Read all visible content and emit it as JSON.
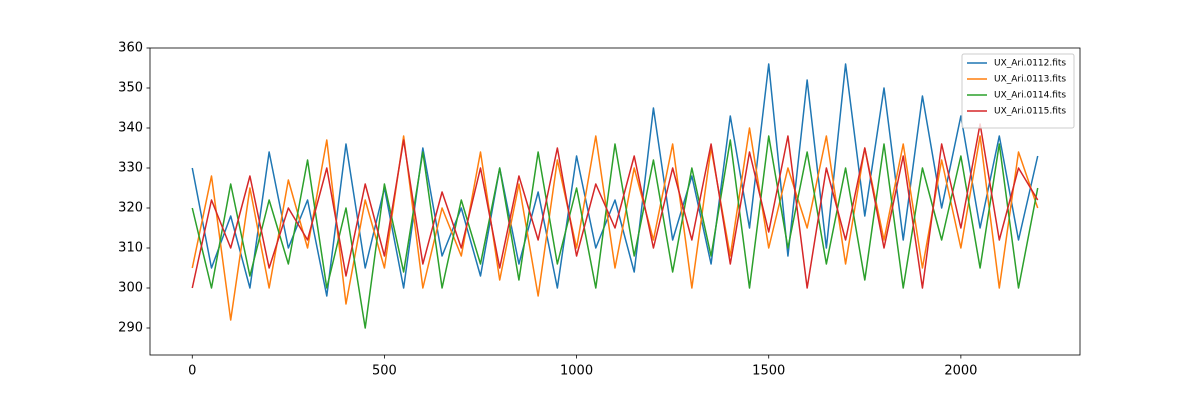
{
  "chart_data": {
    "type": "line",
    "x": [
      0,
      50,
      100,
      150,
      200,
      250,
      300,
      350,
      400,
      450,
      500,
      550,
      600,
      650,
      700,
      750,
      800,
      850,
      900,
      950,
      1000,
      1050,
      1100,
      1150,
      1200,
      1250,
      1300,
      1350,
      1400,
      1450,
      1500,
      1550,
      1600,
      1650,
      1700,
      1750,
      1800,
      1850,
      1900,
      1950,
      2000,
      2050,
      2100,
      2150,
      2200
    ],
    "series": [
      {
        "name": "UX_Ari.0112.fits",
        "color": "#1f77b4",
        "values": [
          330,
          305,
          318,
          300,
          334,
          310,
          322,
          298,
          336,
          305,
          325,
          300,
          335,
          308,
          320,
          303,
          330,
          306,
          324,
          300,
          333,
          310,
          322,
          304,
          345,
          312,
          328,
          306,
          343,
          315,
          356,
          308,
          352,
          310,
          356,
          318,
          350,
          312,
          348,
          320,
          343,
          315,
          338,
          312,
          333
        ]
      },
      {
        "name": "UX_Ari.0113.fits",
        "color": "#ff7f0e",
        "values": [
          305,
          328,
          292,
          325,
          300,
          327,
          310,
          337,
          296,
          322,
          305,
          338,
          300,
          320,
          308,
          334,
          302,
          326,
          298,
          332,
          310,
          338,
          305,
          330,
          312,
          336,
          300,
          335,
          308,
          340,
          310,
          330,
          315,
          338,
          306,
          335,
          312,
          336,
          305,
          332,
          310,
          338,
          300,
          334,
          320
        ]
      },
      {
        "name": "UX_Ari.0114.fits",
        "color": "#2ca02c",
        "values": [
          320,
          300,
          326,
          303,
          322,
          306,
          332,
          300,
          320,
          290,
          326,
          304,
          334,
          300,
          322,
          306,
          330,
          302,
          334,
          306,
          325,
          300,
          336,
          308,
          332,
          304,
          330,
          308,
          337,
          300,
          338,
          310,
          334,
          306,
          330,
          302,
          336,
          300,
          330,
          312,
          333,
          305,
          336,
          300,
          325
        ]
      },
      {
        "name": "UX_Ari.0115.fits",
        "color": "#d62728",
        "values": [
          300,
          322,
          310,
          328,
          305,
          320,
          312,
          330,
          303,
          326,
          308,
          337,
          306,
          324,
          310,
          330,
          305,
          328,
          312,
          335,
          308,
          326,
          315,
          333,
          310,
          330,
          312,
          336,
          306,
          334,
          314,
          338,
          300,
          330,
          312,
          335,
          310,
          333,
          300,
          336,
          315,
          341,
          312,
          330,
          322
        ]
      }
    ],
    "xlim": [
      -110,
      2310
    ],
    "xticks": [
      0,
      500,
      1000,
      1500,
      2000
    ],
    "ylim": [
      283.25,
      360
    ],
    "yticks": [
      290,
      300,
      310,
      320,
      330,
      340,
      350,
      360
    ],
    "legend": "upper right"
  }
}
